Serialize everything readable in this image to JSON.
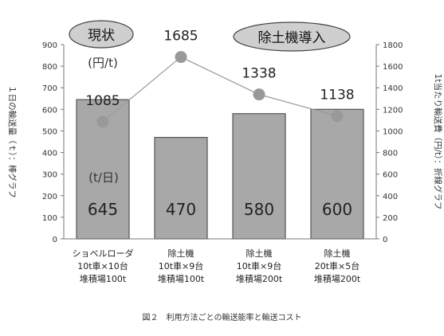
{
  "chart_data": {
    "type": "bar",
    "categories": [
      [
        "ショベルローダ",
        "10t車×10台",
        "堆積場100t"
      ],
      [
        "除土機",
        "10t車×9台",
        "堆積場100t"
      ],
      [
        "除土機",
        "10t車×9台",
        "堆積場200t"
      ],
      [
        "除土機",
        "20t車×5台",
        "堆積場200t"
      ]
    ],
    "series": [
      {
        "name": "",
        "kind": "bar",
        "axis": "left",
        "values": [
          645,
          470,
          580,
          600
        ],
        "color": "#a8a8a8"
      },
      {
        "name": "",
        "kind": "line",
        "axis": "right",
        "values": [
          1085,
          1685,
          1338,
          1138
        ],
        "color": "#999999"
      }
    ],
    "bar_labels": [
      "645",
      "470",
      "580",
      "600"
    ],
    "line_labels": [
      "1085",
      "1685",
      "1338",
      "1138"
    ],
    "ylabel": "１日の輸送量（ｔ）：棒グラフ",
    "y2label": "1t当たり輸送費（円/t）：折線グラフ",
    "ylim": [
      0,
      900
    ],
    "yticks": [
      "0",
      "100",
      "200",
      "300",
      "400",
      "500",
      "600",
      "700",
      "800",
      "900"
    ],
    "y2lim": [
      0,
      1800
    ],
    "y2ticks": [
      "0",
      "200",
      "400",
      "600",
      "800",
      "1000",
      "1200",
      "1400",
      "1600",
      "1800"
    ],
    "unit_bar": "(t/日)",
    "unit_line": "(円/t)",
    "annotations": {
      "current": "現状",
      "proposed": "除土機導入"
    },
    "grid": false
  },
  "caption": "図２　利用方法ごとの輸送能率と輸送コスト"
}
